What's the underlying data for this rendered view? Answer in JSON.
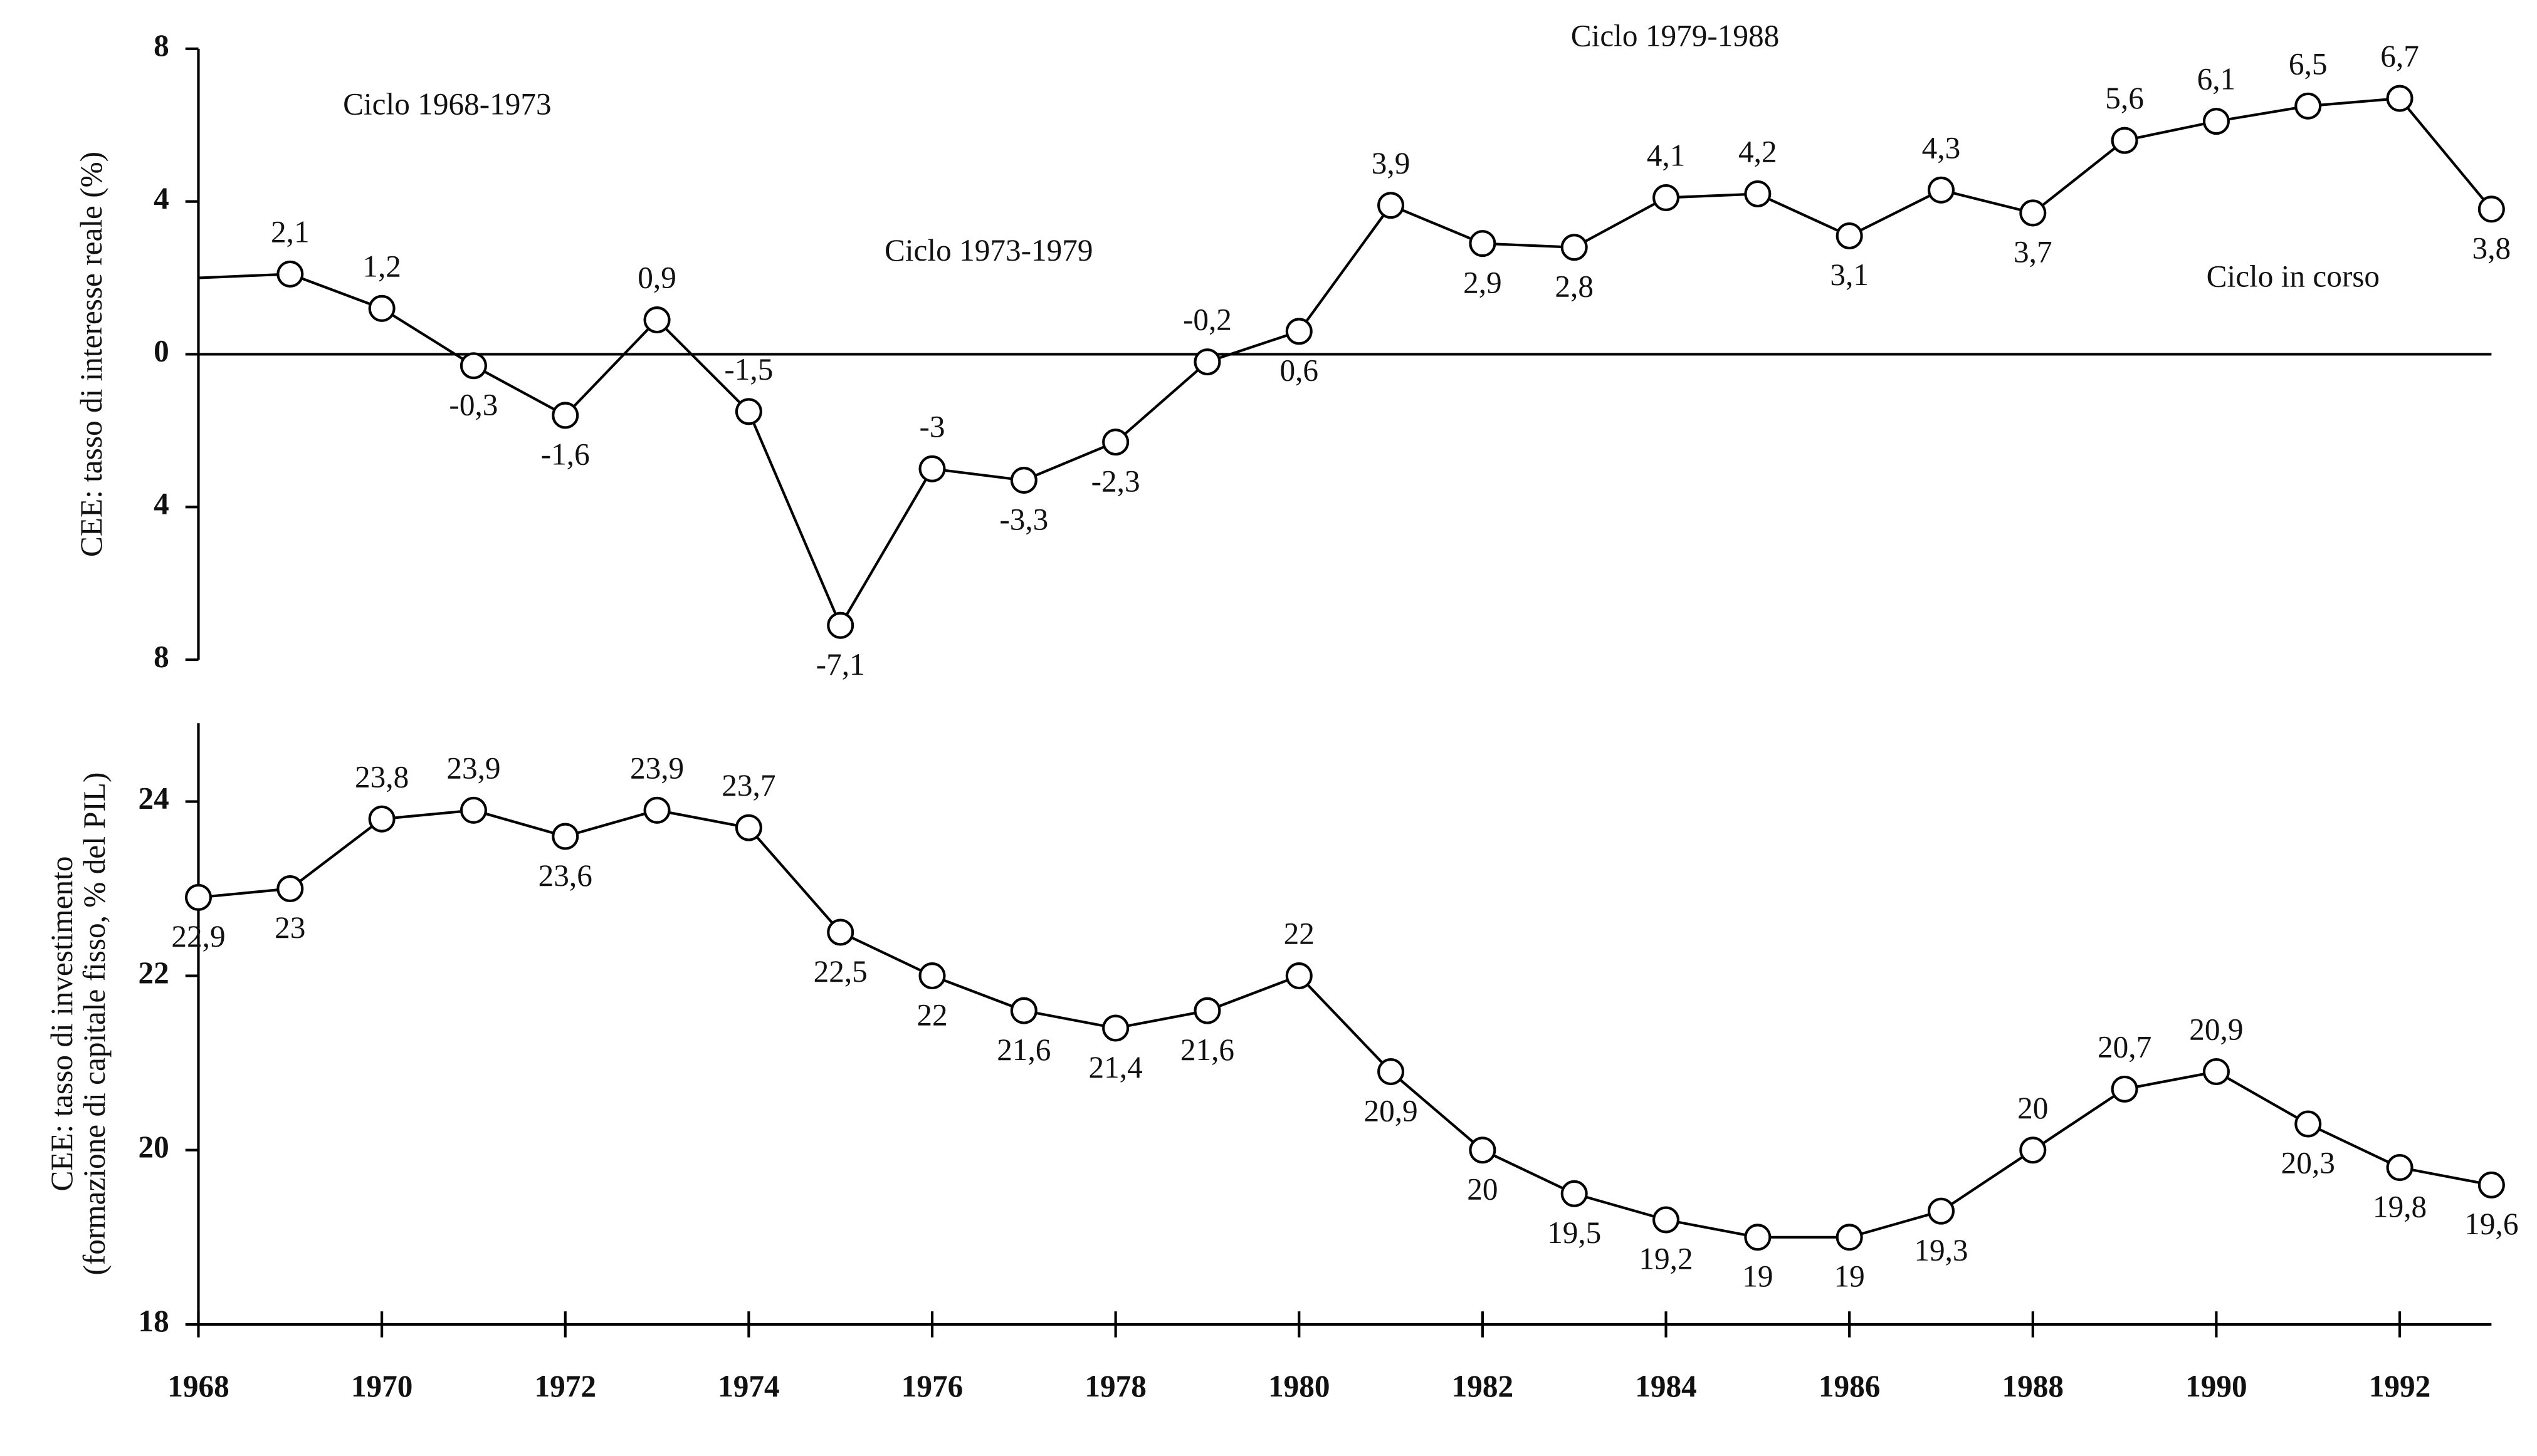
{
  "chart_data": [
    {
      "type": "line",
      "ylabel": "CEE: tasso di interesse reale (%)",
      "x": [
        1968,
        1969,
        1970,
        1971,
        1972,
        1973,
        1974,
        1975,
        1976,
        1977,
        1978,
        1979,
        1980,
        1981,
        1982,
        1983,
        1984,
        1985,
        1986,
        1987,
        1988,
        1989,
        1990,
        1991,
        1992,
        1993
      ],
      "values": [
        2.0,
        2.1,
        1.2,
        -0.3,
        -1.6,
        0.9,
        -1.5,
        -7.1,
        -3,
        -3.3,
        -2.3,
        -0.2,
        0.6,
        3.9,
        2.9,
        2.8,
        4.1,
        4.2,
        3.1,
        4.3,
        3.7,
        5.6,
        6.1,
        6.5,
        6.7,
        3.8
      ],
      "value_labels": [
        null,
        "2,1",
        "1,2",
        "-0,3",
        "-1,6",
        "0,9",
        "-1,5",
        "-7,1",
        "-3",
        "-3,3",
        "-2,3",
        "-0,2",
        "0,6",
        "3,9",
        "2,9",
        "2,8",
        "4,1",
        "4,2",
        "3,1",
        "4,3",
        "3,7",
        "5,6",
        "6,1",
        "6,5",
        "6,7",
        "3,8"
      ],
      "color": "#000000",
      "xlim": [
        1968,
        1993
      ],
      "ylim": [
        -8,
        8
      ],
      "yticks": [
        8,
        4,
        0,
        {
          "value": -4,
          "label": "4"
        },
        {
          "value": -8,
          "label": "8"
        }
      ],
      "annotations": [
        "Ciclo 1968-1973",
        "Ciclo 1973-1979",
        "Ciclo 1979-1988",
        "Ciclo in corso"
      ]
    },
    {
      "type": "line",
      "ylabel": [
        "CEE: tasso di investimento",
        "(formazione di capitale fisso, % del PIL)"
      ],
      "x": [
        1968,
        1969,
        1970,
        1971,
        1972,
        1973,
        1974,
        1975,
        1976,
        1977,
        1978,
        1979,
        1980,
        1981,
        1982,
        1983,
        1984,
        1985,
        1986,
        1987,
        1988,
        1989,
        1990,
        1991,
        1992,
        1993
      ],
      "values": [
        22.9,
        23,
        23.8,
        23.9,
        23.6,
        23.9,
        23.7,
        22.5,
        22,
        21.6,
        21.4,
        21.6,
        22,
        20.9,
        20,
        19.5,
        19.2,
        19,
        19,
        19.3,
        20,
        20.7,
        20.9,
        20.3,
        19.8,
        19.6
      ],
      "value_labels": [
        "22,9",
        "23",
        "23,8",
        "23,9",
        "23,6",
        "23,9",
        "23,7",
        "22,5",
        "22",
        "21,6",
        "21,4",
        "21,6",
        "22",
        "20,9",
        "20",
        "19,5",
        "19,2",
        "19",
        "19",
        "19,3",
        "20",
        "20,7",
        "20,9",
        "20,3",
        "19,8",
        "19,6"
      ],
      "color": "#000000",
      "xlim": [
        1968,
        1993
      ],
      "xticks": [
        1968,
        1970,
        1972,
        1974,
        1976,
        1978,
        1980,
        1982,
        1984,
        1986,
        1988,
        1990,
        1992
      ],
      "ylim": [
        18,
        24.9
      ],
      "yticks": [
        18,
        20,
        22,
        24
      ]
    }
  ]
}
